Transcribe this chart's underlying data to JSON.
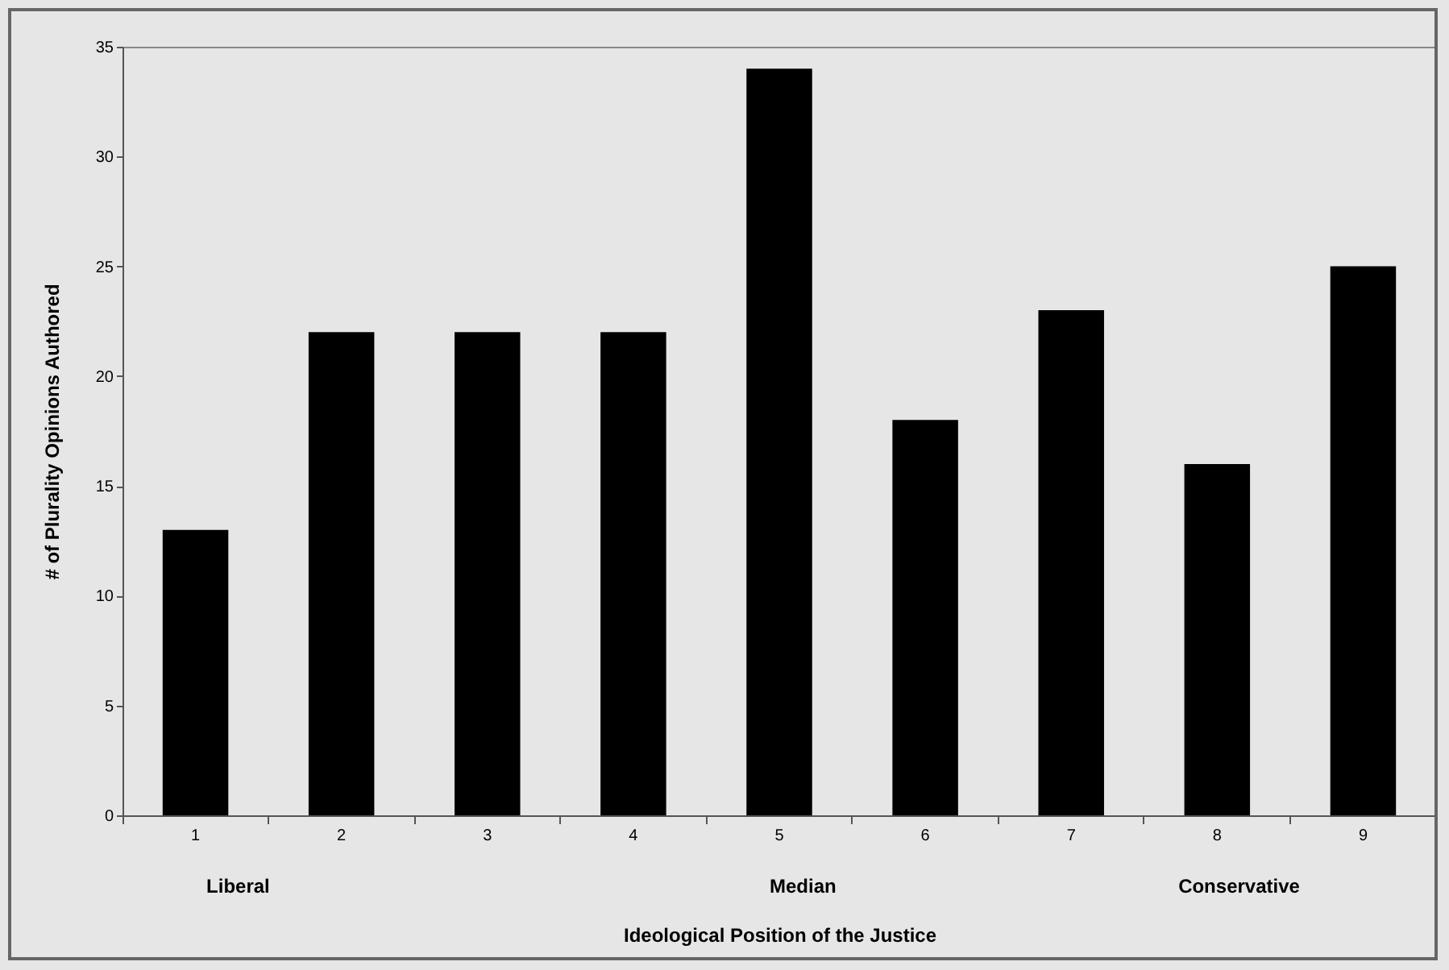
{
  "chart_data": {
    "type": "bar",
    "xlabel": "Ideological Position of the Justice",
    "ylabel": "# of Plurality Opinions Authored",
    "categories": [
      "1",
      "2",
      "3",
      "4",
      "5",
      "6",
      "7",
      "8",
      "9"
    ],
    "values": [
      13,
      22,
      22,
      22,
      34,
      18,
      23,
      16,
      25
    ],
    "color": "#000000",
    "ylim": [
      0,
      35
    ],
    "yticks": [
      0,
      5,
      10,
      15,
      20,
      25,
      30,
      35
    ],
    "grid": false,
    "annotations": [
      "Liberal",
      "Median",
      "Conservative"
    ]
  }
}
